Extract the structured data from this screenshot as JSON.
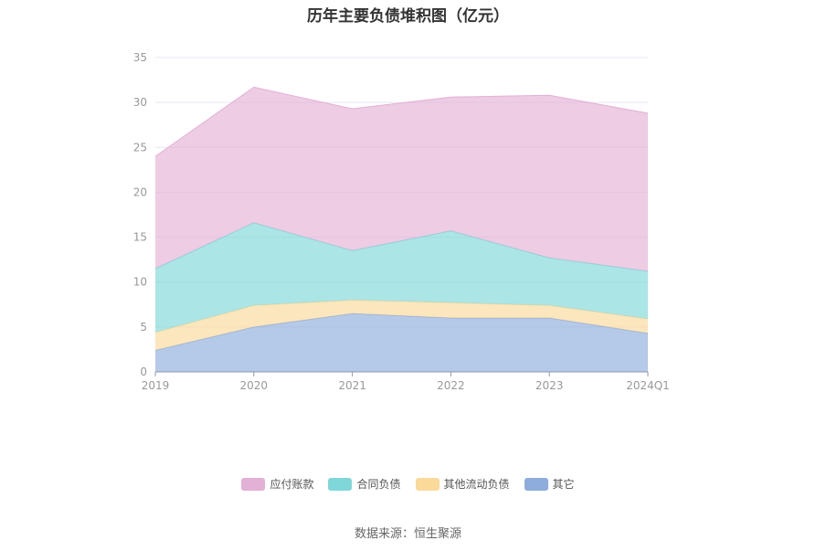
{
  "chart_data": {
    "type": "area",
    "title": "历年主要负债堆积图（亿元）",
    "stacked": true,
    "categories": [
      "2019",
      "2020",
      "2021",
      "2022",
      "2023",
      "2024Q1"
    ],
    "ylim": [
      0,
      35
    ],
    "yticks": [
      0,
      5,
      10,
      15,
      20,
      25,
      30,
      35
    ],
    "grid": true,
    "legend_position": "bottom",
    "series": [
      {
        "name": "其它",
        "values": [
          2.4,
          5.0,
          6.5,
          6.0,
          6.0,
          4.3
        ],
        "color": "#8eacdc"
      },
      {
        "name": "其他流动负债",
        "values": [
          2.0,
          2.4,
          1.5,
          1.7,
          1.4,
          1.6
        ],
        "color": "#fad999"
      },
      {
        "name": "合同负债",
        "values": [
          7.1,
          9.2,
          5.5,
          8.0,
          5.3,
          5.3
        ],
        "color": "#7fd7d9"
      },
      {
        "name": "应付账款",
        "values": [
          12.5,
          15.1,
          15.8,
          14.9,
          18.1,
          17.6
        ],
        "color": "#e3b0d6"
      }
    ],
    "source": "数据来源：恒生聚源"
  }
}
